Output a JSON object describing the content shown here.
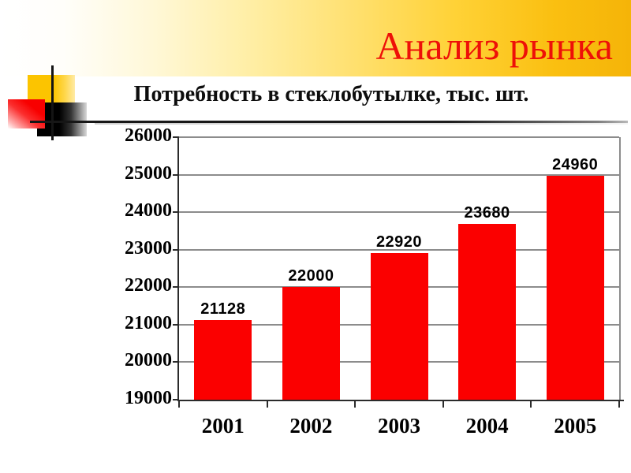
{
  "slide": {
    "title": "Анализ рынка",
    "subtitle": "Потребность в стеклобутылке, тыс. шт."
  },
  "colors": {
    "title_red": "#ee1008",
    "bar_red": "#fb0000",
    "banner_gold": "#f5b408",
    "gridline_gray": "#8c8c8c",
    "axis_dark": "#2b2b2b",
    "label_black": "#000000"
  },
  "chart_data": {
    "type": "bar",
    "title": "Потребность в стеклобутылке, тыс. шт.",
    "categories": [
      "2001",
      "2002",
      "2003",
      "2004",
      "2005"
    ],
    "values": [
      21128,
      22000,
      22920,
      23680,
      24960
    ],
    "series": [
      {
        "name": "Потребность в стеклобутылке, тыс. шт.",
        "values": [
          21128,
          22000,
          22920,
          23680,
          24960
        ]
      }
    ],
    "xlabel": "",
    "ylabel": "",
    "ylim": [
      19000,
      26000
    ],
    "ytick_step": 1000,
    "grid": true,
    "legend": false,
    "bar_color": "#fb0000",
    "data_labels": true
  }
}
